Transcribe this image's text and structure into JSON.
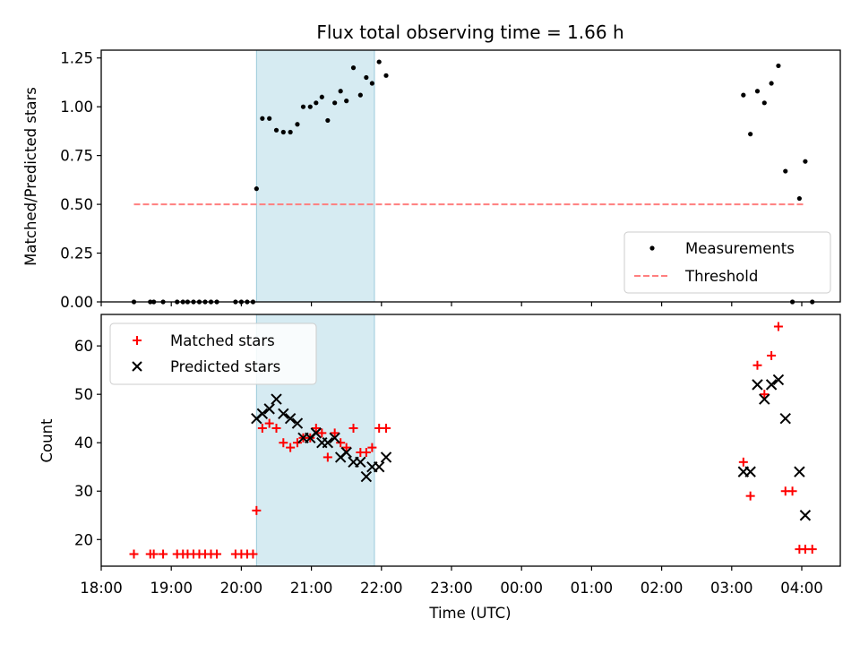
{
  "chart_data": {
    "title": "Flux total observing time = 1.66 h",
    "xlabel": "Time (UTC)",
    "x_ticks": [
      "18:00",
      "19:00",
      "20:00",
      "21:00",
      "22:00",
      "23:00",
      "00:00",
      "01:00",
      "02:00",
      "03:00",
      "04:00"
    ],
    "xlim_hours_since_18utc": [
      0,
      10.55
    ],
    "shaded_interval": {
      "start": "20:13",
      "end": "21:54",
      "color": "#add8e6"
    },
    "panels": [
      {
        "id": "ratio",
        "type": "scatter",
        "ylabel": "Matched/Predicted stars",
        "ylim": [
          0,
          1.29
        ],
        "y_ticks": [
          "0.00",
          "0.25",
          "0.50",
          "0.75",
          "1.00",
          "1.25"
        ],
        "legend": {
          "location": "lower-right",
          "entries": [
            "Measurements",
            "Threshold"
          ]
        },
        "series": [
          {
            "name": "Measurements",
            "marker": "dot",
            "color": "#000000",
            "points": [
              [
                "18:28",
                0
              ],
              [
                "18:42",
                0
              ],
              [
                "18:45",
                0
              ],
              [
                "18:53",
                0
              ],
              [
                "19:05",
                0
              ],
              [
                "19:10",
                0
              ],
              [
                "19:14",
                0
              ],
              [
                "19:19",
                0
              ],
              [
                "19:24",
                0
              ],
              [
                "19:29",
                0
              ],
              [
                "19:34",
                0
              ],
              [
                "19:39",
                0
              ],
              [
                "19:55",
                0
              ],
              [
                "20:00",
                0
              ],
              [
                "20:05",
                0
              ],
              [
                "20:10",
                0
              ],
              [
                "20:13",
                0.58
              ],
              [
                "20:18",
                0.94
              ],
              [
                "20:24",
                0.94
              ],
              [
                "20:30",
                0.88
              ],
              [
                "20:36",
                0.87
              ],
              [
                "20:42",
                0.87
              ],
              [
                "20:48",
                0.91
              ],
              [
                "20:53",
                1.0
              ],
              [
                "20:59",
                1.0
              ],
              [
                "21:04",
                1.02
              ],
              [
                "21:09",
                1.05
              ],
              [
                "21:14",
                0.93
              ],
              [
                "21:20",
                1.02
              ],
              [
                "21:25",
                1.08
              ],
              [
                "21:30",
                1.03
              ],
              [
                "21:36",
                1.2
              ],
              [
                "21:42",
                1.06
              ],
              [
                "21:47",
                1.15
              ],
              [
                "21:52",
                1.12
              ],
              [
                "21:58",
                1.23
              ],
              [
                "22:04",
                1.16
              ],
              [
                "03:10",
                1.06
              ],
              [
                "03:16",
                0.86
              ],
              [
                "03:22",
                1.08
              ],
              [
                "03:28",
                1.02
              ],
              [
                "03:34",
                1.12
              ],
              [
                "03:40",
                1.21
              ],
              [
                "03:46",
                0.67
              ],
              [
                "03:52",
                0.0
              ],
              [
                "03:58",
                0.53
              ],
              [
                "04:03",
                0.72
              ],
              [
                "04:09",
                0.0
              ]
            ]
          },
          {
            "name": "Threshold",
            "type": "line",
            "style": "dashed",
            "color": "#ff7f7f",
            "points": [
              [
                "18:28",
                0.5
              ],
              [
                "04:03",
                0.5
              ]
            ]
          }
        ]
      },
      {
        "id": "count",
        "type": "scatter",
        "ylabel": "Count",
        "ylim": [
          14.5,
          66.5
        ],
        "y_ticks": [
          "20",
          "30",
          "40",
          "50",
          "60"
        ],
        "legend": {
          "location": "upper-left",
          "entries": [
            "Matched stars",
            "Predicted stars"
          ]
        },
        "series": [
          {
            "name": "Matched stars",
            "marker": "plus",
            "color": "#ff0000",
            "points": [
              [
                "18:28",
                17
              ],
              [
                "18:42",
                17
              ],
              [
                "18:45",
                17
              ],
              [
                "18:53",
                17
              ],
              [
                "19:05",
                17
              ],
              [
                "19:10",
                17
              ],
              [
                "19:14",
                17
              ],
              [
                "19:19",
                17
              ],
              [
                "19:24",
                17
              ],
              [
                "19:29",
                17
              ],
              [
                "19:34",
                17
              ],
              [
                "19:39",
                17
              ],
              [
                "19:55",
                17
              ],
              [
                "20:00",
                17
              ],
              [
                "20:05",
                17
              ],
              [
                "20:10",
                17
              ],
              [
                "20:13",
                26
              ],
              [
                "20:18",
                43
              ],
              [
                "20:24",
                44
              ],
              [
                "20:30",
                43
              ],
              [
                "20:36",
                40
              ],
              [
                "20:42",
                39
              ],
              [
                "20:48",
                40
              ],
              [
                "20:53",
                41
              ],
              [
                "20:59",
                41
              ],
              [
                "21:04",
                43
              ],
              [
                "21:09",
                42
              ],
              [
                "21:14",
                37
              ],
              [
                "21:20",
                42
              ],
              [
                "21:25",
                40
              ],
              [
                "21:30",
                39
              ],
              [
                "21:36",
                43
              ],
              [
                "21:42",
                38
              ],
              [
                "21:47",
                38
              ],
              [
                "21:52",
                39
              ],
              [
                "21:58",
                43
              ],
              [
                "22:04",
                43
              ],
              [
                "03:10",
                36
              ],
              [
                "03:16",
                29
              ],
              [
                "03:22",
                56
              ],
              [
                "03:28",
                50
              ],
              [
                "03:34",
                58
              ],
              [
                "03:40",
                64
              ],
              [
                "03:46",
                30
              ],
              [
                "03:52",
                30
              ],
              [
                "03:58",
                18
              ],
              [
                "04:03",
                18
              ],
              [
                "04:09",
                18
              ]
            ]
          },
          {
            "name": "Predicted stars",
            "marker": "x",
            "color": "#000000",
            "points": [
              [
                "20:13",
                45
              ],
              [
                "20:18",
                46
              ],
              [
                "20:24",
                47
              ],
              [
                "20:30",
                49
              ],
              [
                "20:36",
                46
              ],
              [
                "20:42",
                45
              ],
              [
                "20:48",
                44
              ],
              [
                "20:53",
                41
              ],
              [
                "20:59",
                41
              ],
              [
                "21:04",
                42
              ],
              [
                "21:09",
                40
              ],
              [
                "21:14",
                40
              ],
              [
                "21:20",
                41
              ],
              [
                "21:25",
                37
              ],
              [
                "21:30",
                38
              ],
              [
                "21:36",
                36
              ],
              [
                "21:42",
                36
              ],
              [
                "21:47",
                33
              ],
              [
                "21:52",
                35
              ],
              [
                "21:58",
                35
              ],
              [
                "22:04",
                37
              ],
              [
                "03:10",
                34
              ],
              [
                "03:16",
                34
              ],
              [
                "03:22",
                52
              ],
              [
                "03:28",
                49
              ],
              [
                "03:34",
                52
              ],
              [
                "03:40",
                53
              ],
              [
                "03:46",
                45
              ],
              [
                "03:58",
                34
              ],
              [
                "04:03",
                25
              ]
            ]
          }
        ]
      }
    ]
  }
}
